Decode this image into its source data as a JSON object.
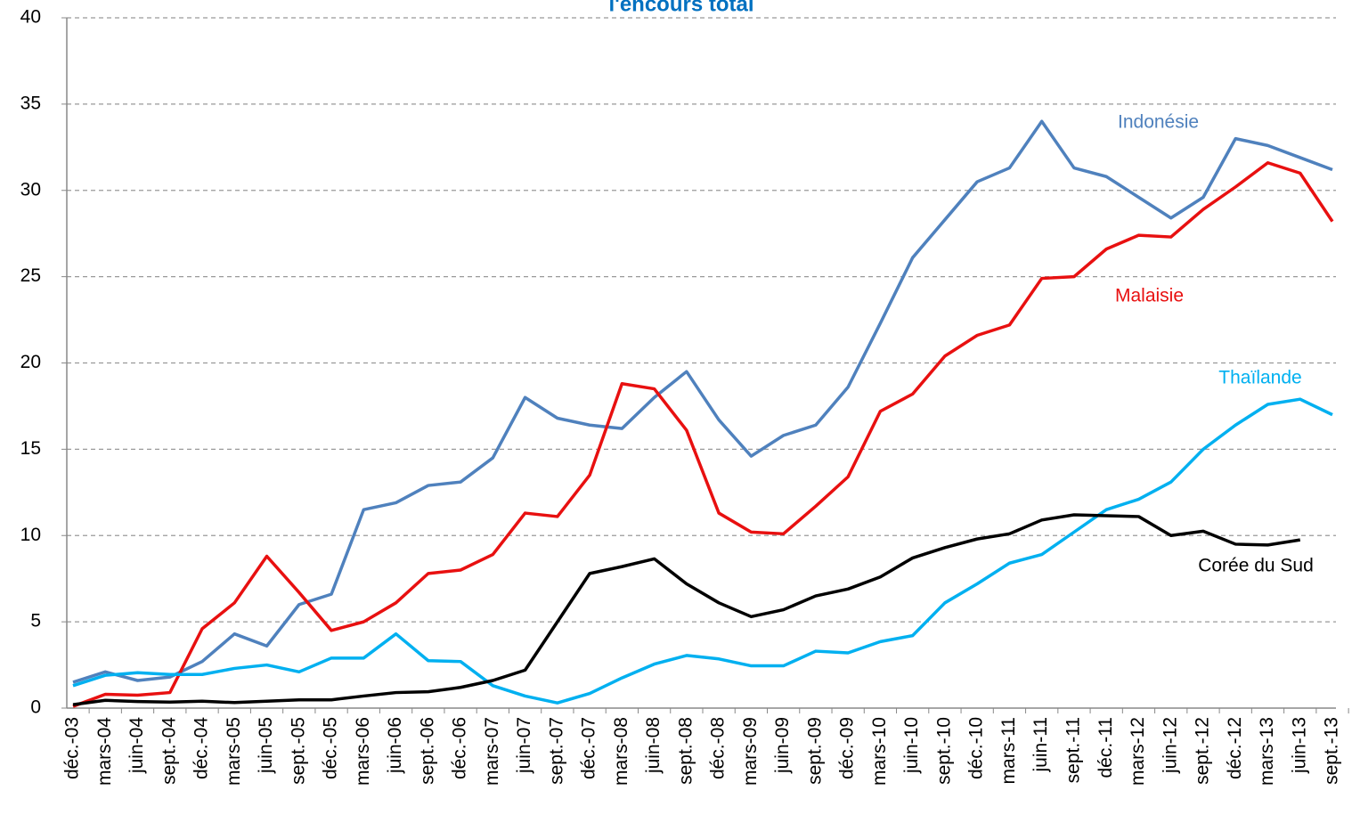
{
  "chart_data": {
    "type": "line",
    "title": "l'encours total",
    "categories": [
      "déc.-03",
      "mars-04",
      "juin-04",
      "sept.-04",
      "déc.-04",
      "mars-05",
      "juin-05",
      "sept.-05",
      "déc.-05",
      "mars-06",
      "juin-06",
      "sept.-06",
      "déc.-06",
      "mars-07",
      "juin-07",
      "sept.-07",
      "déc.-07",
      "mars-08",
      "juin-08",
      "sept.-08",
      "déc.-08",
      "mars-09",
      "juin-09",
      "sept.-09",
      "déc.-09",
      "mars-10",
      "juin-10",
      "sept.-10",
      "déc.-10",
      "mars-11",
      "juin-11",
      "sept.-11",
      "déc.-11",
      "mars-12",
      "juin-12",
      "sept.-12",
      "déc.-12",
      "mars-13",
      "juin-13",
      "sept.-13"
    ],
    "series": [
      {
        "name": "Indonésie",
        "color": "#4f81bd",
        "values": [
          1.5,
          2.1,
          1.6,
          1.8,
          2.7,
          4.3,
          3.6,
          6.0,
          6.6,
          11.5,
          11.9,
          12.9,
          13.1,
          14.5,
          18.0,
          16.8,
          16.4,
          16.2,
          18.0,
          19.5,
          16.7,
          14.6,
          15.8,
          16.4,
          18.6,
          22.3,
          26.1,
          28.3,
          30.5,
          31.3,
          34.0,
          31.3,
          30.8,
          29.6,
          28.4,
          29.6,
          33.0,
          32.6,
          31.9,
          31.2
        ]
      },
      {
        "name": "Malaisie",
        "color": "#e81010",
        "values": [
          0.1,
          0.8,
          0.75,
          0.9,
          4.6,
          6.1,
          8.8,
          6.7,
          4.5,
          5.0,
          6.1,
          7.8,
          8.0,
          8.9,
          11.3,
          11.1,
          13.5,
          18.8,
          18.5,
          16.1,
          11.3,
          10.2,
          10.1,
          11.7,
          13.4,
          17.2,
          18.2,
          20.4,
          21.6,
          22.2,
          24.9,
          25.0,
          26.6,
          27.4,
          27.3,
          28.9,
          30.2,
          31.6,
          31.0,
          28.2
        ]
      },
      {
        "name": "Thaïlande",
        "color": "#00b0f0",
        "values": [
          1.3,
          1.9,
          2.05,
          1.95,
          1.95,
          2.3,
          2.5,
          2.1,
          2.9,
          2.9,
          4.3,
          2.75,
          2.7,
          1.3,
          0.7,
          0.3,
          0.85,
          1.75,
          2.55,
          3.05,
          2.85,
          2.45,
          2.45,
          3.3,
          3.2,
          3.85,
          4.2,
          6.1,
          7.2,
          8.4,
          8.9,
          10.2,
          11.5,
          12.1,
          13.1,
          15.0,
          16.4,
          17.6,
          17.9,
          17.0
        ]
      },
      {
        "name": "Corée du Sud",
        "color": "#000000",
        "values": [
          0.2,
          0.45,
          0.38,
          0.35,
          0.4,
          0.32,
          0.4,
          0.48,
          0.48,
          0.7,
          0.9,
          0.95,
          1.2,
          1.6,
          2.2,
          5.0,
          7.8,
          8.2,
          8.65,
          7.2,
          6.1,
          5.3,
          5.7,
          6.5,
          6.9,
          7.6,
          8.7,
          9.3,
          9.8,
          10.1,
          10.9,
          11.2,
          11.15,
          11.1,
          10.0,
          10.25,
          9.5,
          9.45,
          9.75,
          null
        ]
      }
    ],
    "ylim": [
      0,
      40
    ],
    "yticks": [
      0,
      5,
      10,
      15,
      20,
      25,
      30,
      35,
      40
    ],
    "grid": true,
    "title_color": "#0070c0"
  }
}
